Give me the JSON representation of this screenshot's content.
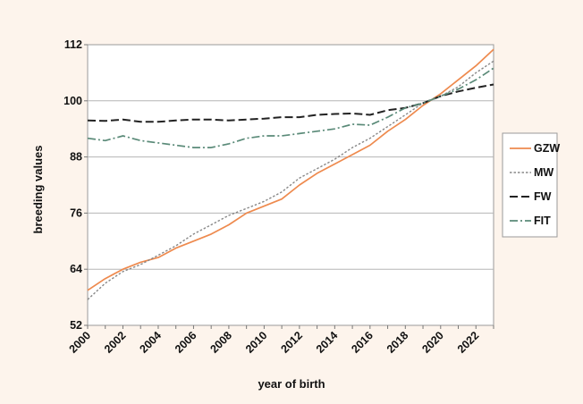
{
  "chart_data": {
    "type": "line",
    "title": "",
    "xlabel": "year of birth",
    "ylabel": "breeding values",
    "x": [
      2000,
      2001,
      2002,
      2003,
      2004,
      2005,
      2006,
      2007,
      2008,
      2009,
      2010,
      2011,
      2012,
      2013,
      2014,
      2015,
      2016,
      2017,
      2018,
      2019,
      2020,
      2021,
      2022,
      2023
    ],
    "xticks": [
      "2000",
      "2002",
      "2004",
      "2006",
      "2008",
      "2010",
      "2012",
      "2014",
      "2016",
      "2018",
      "2020",
      "2022"
    ],
    "yticks": [
      "52",
      "64",
      "76",
      "88",
      "100",
      "112"
    ],
    "xlim": [
      2000,
      2023
    ],
    "ylim": [
      52,
      112
    ],
    "grid": "horizontal",
    "legend_position": "right",
    "series": [
      {
        "name": "GZW",
        "color": "#ee8a4e",
        "style": "solid",
        "values": [
          59.5,
          62,
          64,
          65.5,
          66.5,
          68.5,
          70,
          71.5,
          73.5,
          76,
          77.5,
          79,
          82,
          84.5,
          86.5,
          88.5,
          90.5,
          93.5,
          96,
          99,
          101.5,
          104.5,
          107.5,
          111
        ]
      },
      {
        "name": "MW",
        "color": "#888888",
        "style": "dotted",
        "values": [
          57.5,
          61,
          63.5,
          65,
          67,
          69,
          71.5,
          73.5,
          75.5,
          77,
          78.5,
          80.5,
          83.5,
          85.5,
          87.5,
          90,
          92,
          94.5,
          97,
          99.5,
          101,
          103,
          106,
          108.5
        ]
      },
      {
        "name": "FW",
        "color": "#222222",
        "style": "dashed",
        "values": [
          95.8,
          95.7,
          96,
          95.5,
          95.5,
          95.8,
          96,
          96,
          95.8,
          96,
          96.2,
          96.5,
          96.5,
          97,
          97.2,
          97.3,
          97,
          98,
          98.5,
          99.5,
          101,
          102,
          102.8,
          103.5
        ]
      },
      {
        "name": "FIT",
        "color": "#5a8a78",
        "style": "dashdot",
        "values": [
          92,
          91.5,
          92.5,
          91.5,
          91,
          90.5,
          90,
          90,
          90.8,
          92,
          92.5,
          92.5,
          93,
          93.5,
          94,
          95,
          94.8,
          96.5,
          98.5,
          99.5,
          101,
          102.5,
          104.5,
          107
        ]
      }
    ]
  }
}
